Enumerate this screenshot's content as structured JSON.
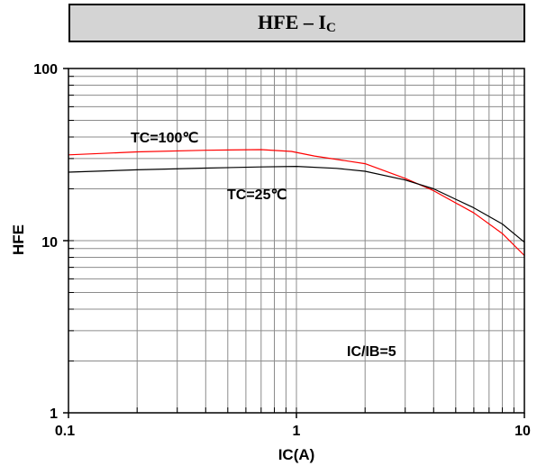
{
  "header": {
    "title_main": "HFE – I",
    "title_sub": "C"
  },
  "chart_data": {
    "type": "line",
    "title": "HFE – IC",
    "xlabel": "IC(A)",
    "ylabel": "HFE",
    "xscale": "log",
    "yscale": "log",
    "xlim": [
      0.1,
      10
    ],
    "ylim": [
      1,
      100
    ],
    "grid": true,
    "x_tick_labels": [
      "0.1",
      "1",
      "10"
    ],
    "y_tick_labels": [
      "1",
      "10",
      "100"
    ],
    "series": [
      {
        "name": "TC=100℃",
        "color": "#ff0000",
        "x": [
          0.1,
          0.2,
          0.4,
          0.7,
          0.95,
          1.2,
          2.0,
          3.0,
          4.0,
          6.0,
          8.0,
          10.0
        ],
        "y": [
          31.5,
          32.8,
          33.5,
          33.8,
          33.0,
          31.0,
          28.0,
          23.0,
          19.5,
          14.5,
          11.0,
          8.2
        ]
      },
      {
        "name": "TC=25℃",
        "color": "#000000",
        "x": [
          0.1,
          0.2,
          0.4,
          0.7,
          1.0,
          1.5,
          2.0,
          3.0,
          4.0,
          6.0,
          8.0,
          10.0
        ],
        "y": [
          25.0,
          25.8,
          26.4,
          26.8,
          27.0,
          26.3,
          25.3,
          22.5,
          20.0,
          15.5,
          12.5,
          9.8
        ]
      }
    ],
    "annotations": [
      "TC=100℃",
      "TC=25℃",
      "IC/IB=5"
    ]
  }
}
